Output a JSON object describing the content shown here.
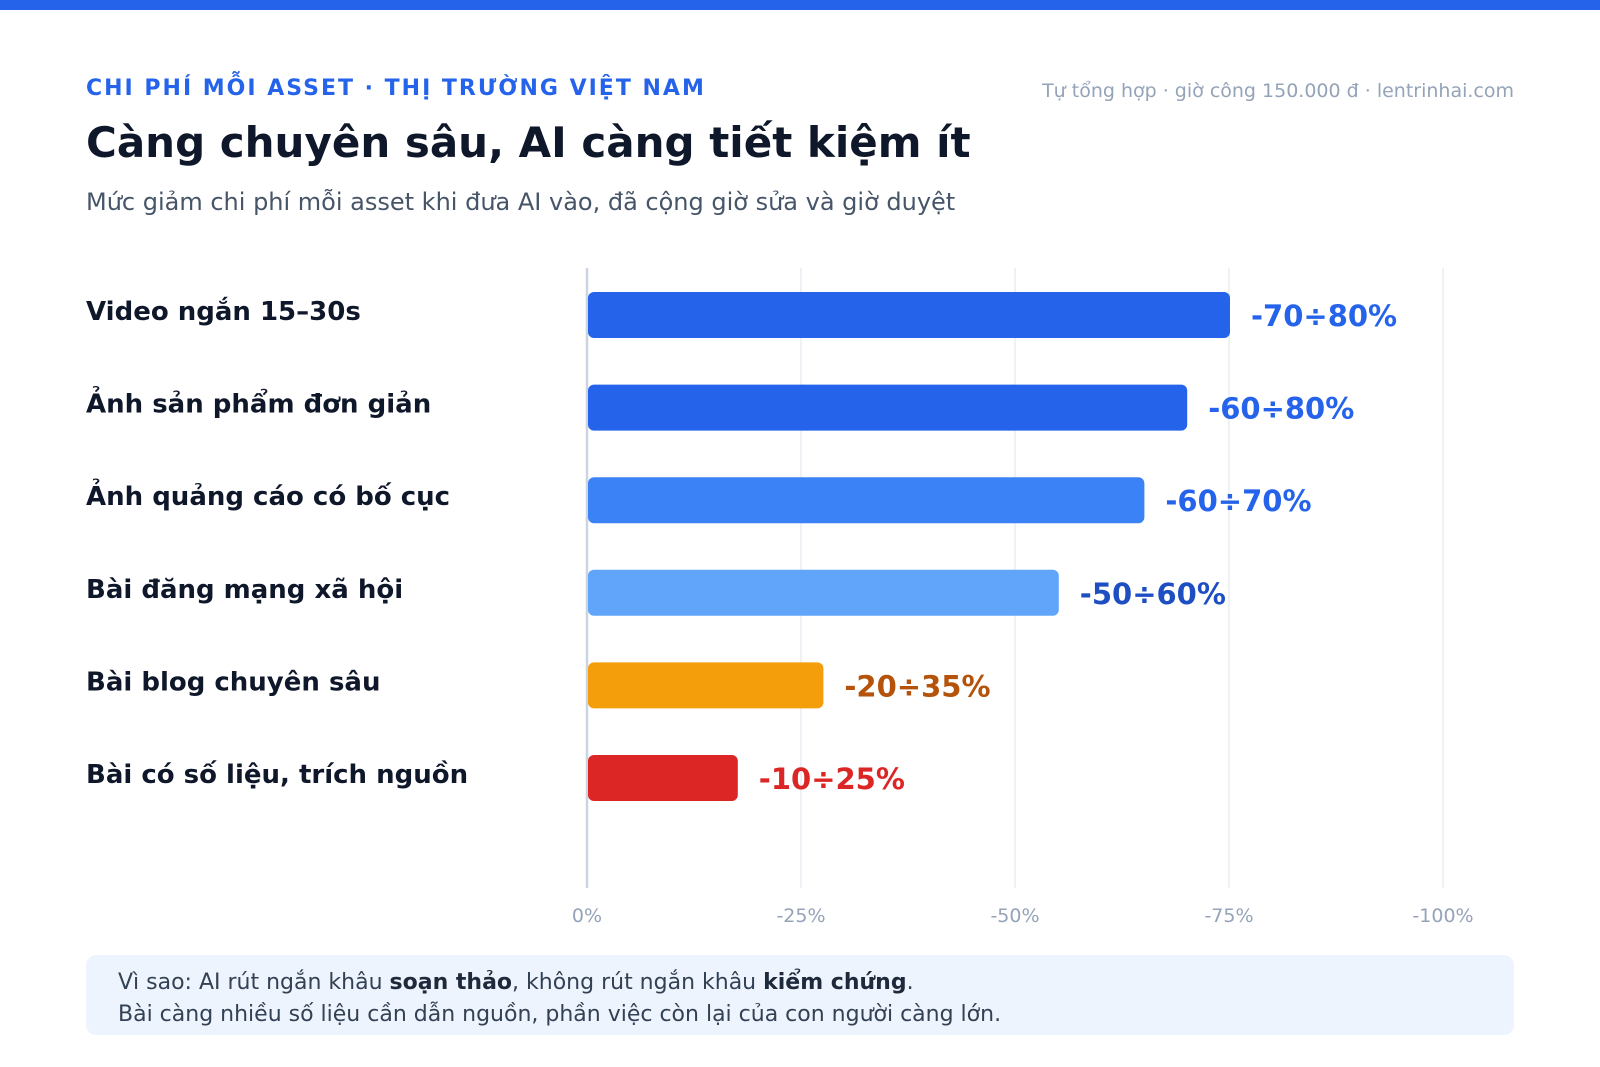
{
  "header": {
    "eyebrow": "CHI PHÍ MỖI ASSET · THỊ TRƯỜNG VIỆT NAM",
    "source": "Tự tổng hợp · giờ công 150.000 đ · lentrinhai.com",
    "title": "Càng chuyên sâu, AI càng tiết kiệm ít",
    "subtitle": "Mức giảm chi phí mỗi asset khi đưa AI vào, đã cộng giờ sửa và giờ duyệt"
  },
  "colors": {
    "accent": "#2563eb",
    "bars": [
      "#2563eb",
      "#2563eb",
      "#3b82f6",
      "#60a5fa",
      "#f59e0b",
      "#dc2626"
    ],
    "value_labels": [
      "#2563eb",
      "#2563eb",
      "#2563eb",
      "#1e4fc2",
      "#b45309",
      "#dc2626"
    ]
  },
  "chart_data": {
    "type": "bar",
    "orientation": "horizontal",
    "categories": [
      "Video ngắn 15–30s",
      "Ảnh sản phẩm đơn giản",
      "Ảnh quảng cáo có bố cục",
      "Bài đăng mạng xã hội",
      "Bài blog chuyên sâu",
      "Bài có số liệu, trích nguồn"
    ],
    "values": [
      75,
      70,
      65,
      55,
      27.5,
      17.5
    ],
    "value_labels": [
      "-70÷80%",
      "-60÷80%",
      "-60÷70%",
      "-50÷60%",
      "-20÷35%",
      "-10÷25%"
    ],
    "xlim": [
      0,
      100
    ],
    "x_ticks": [
      0,
      25,
      50,
      75,
      100
    ],
    "x_tick_labels": [
      "0%",
      "-25%",
      "-50%",
      "-75%",
      "-100%"
    ],
    "grid": "vertical"
  },
  "note": {
    "line1_prefix": "Vì sao: AI rút ngắn khâu ",
    "line1_bold1": "soạn thảo",
    "line1_mid": ", không rút ngắn khâu ",
    "line1_bold2": "kiểm chứng",
    "line1_suffix": ".",
    "line2": "Bài càng nhiều số liệu cần dẫn nguồn, phần việc còn lại của con người càng lớn."
  }
}
